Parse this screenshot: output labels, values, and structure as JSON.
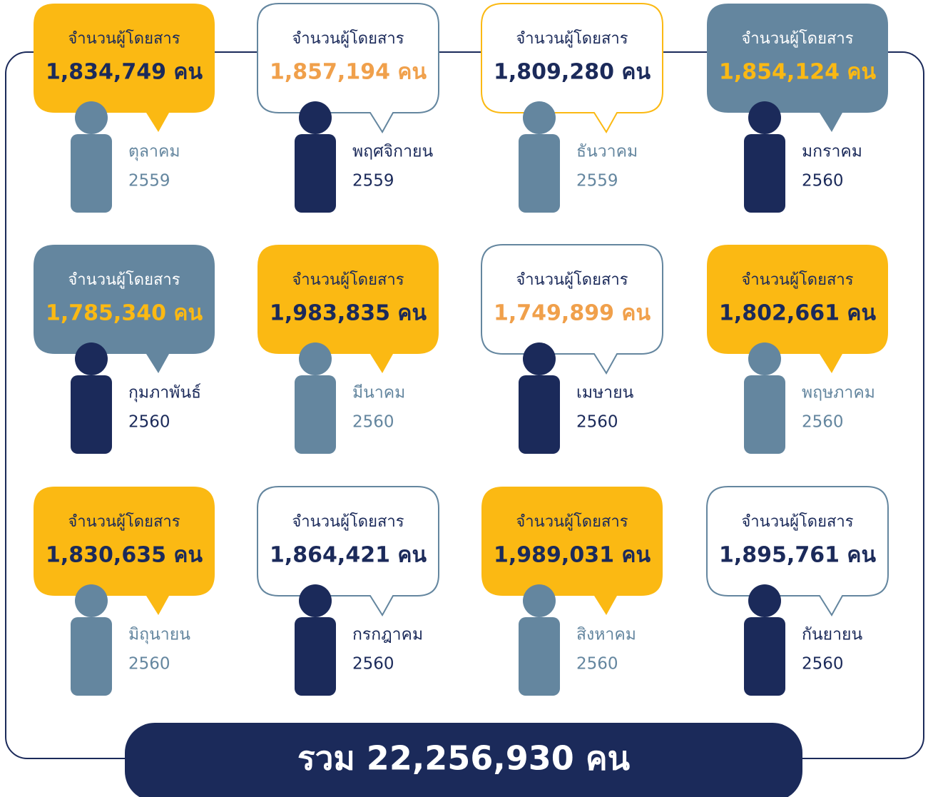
{
  "cards": [
    {
      "label": "จำนวนผู้โดยสาร",
      "value": "1,834,749 คน",
      "month": "ตุลาคม",
      "year": "2559",
      "fill": "#fbb913",
      "stroke": "none",
      "label_color": "#1b2a5a",
      "value_color": "#1b2a5a",
      "figure_color": "#64869f"
    },
    {
      "label": "จำนวนผู้โดยสาร",
      "value": "1,857,194 คน",
      "month": "พฤศจิกายน",
      "year": "2559",
      "fill": "#ffffff",
      "stroke": "#64869f",
      "label_color": "#1b2a5a",
      "value_color": "#f0a04b",
      "figure_color": "#1b2a5a"
    },
    {
      "label": "จำนวนผู้โดยสาร",
      "value": "1,809,280 คน",
      "month": "ธันวาคม",
      "year": "2559",
      "fill": "#ffffff",
      "stroke": "#fbb913",
      "label_color": "#1b2a5a",
      "value_color": "#1b2a5a",
      "figure_color": "#64869f"
    },
    {
      "label": "จำนวนผู้โดยสาร",
      "value": "1,854,124 คน",
      "month": "มกราคม",
      "year": "2560",
      "fill": "#64869f",
      "stroke": "none",
      "label_color": "#ffffff",
      "value_color": "#fbb913",
      "figure_color": "#1b2a5a"
    },
    {
      "label": "จำนวนผู้โดยสาร",
      "value": "1,785,340 คน",
      "month": "กุมภาพันธ์",
      "year": "2560",
      "fill": "#64869f",
      "stroke": "none",
      "label_color": "#ffffff",
      "value_color": "#fbb913",
      "figure_color": "#1b2a5a"
    },
    {
      "label": "จำนวนผู้โดยสาร",
      "value": "1,983,835 คน",
      "month": "มีนาคม",
      "year": "2560",
      "fill": "#fbb913",
      "stroke": "none",
      "label_color": "#1b2a5a",
      "value_color": "#1b2a5a",
      "figure_color": "#64869f"
    },
    {
      "label": "จำนวนผู้โดยสาร",
      "value": "1,749,899 คน",
      "month": "เมษายน",
      "year": "2560",
      "fill": "#ffffff",
      "stroke": "#64869f",
      "label_color": "#1b2a5a",
      "value_color": "#f0a04b",
      "figure_color": "#1b2a5a"
    },
    {
      "label": "จำนวนผู้โดยสาร",
      "value": "1,802,661 คน",
      "month": "พฤษภาคม",
      "year": "2560",
      "fill": "#fbb913",
      "stroke": "none",
      "label_color": "#1b2a5a",
      "value_color": "#1b2a5a",
      "figure_color": "#64869f"
    },
    {
      "label": "จำนวนผู้โดยสาร",
      "value": "1,830,635 คน",
      "month": "มิถุนายน",
      "year": "2560",
      "fill": "#fbb913",
      "stroke": "none",
      "label_color": "#1b2a5a",
      "value_color": "#1b2a5a",
      "figure_color": "#64869f"
    },
    {
      "label": "จำนวนผู้โดยสาร",
      "value": "1,864,421 คน",
      "month": "กรกฎาคม",
      "year": "2560",
      "fill": "#ffffff",
      "stroke": "#64869f",
      "label_color": "#1b2a5a",
      "value_color": "#1b2a5a",
      "figure_color": "#1b2a5a"
    },
    {
      "label": "จำนวนผู้โดยสาร",
      "value": "1,989,031 คน",
      "month": "สิงหาคม",
      "year": "2560",
      "fill": "#fbb913",
      "stroke": "none",
      "label_color": "#1b2a5a",
      "value_color": "#1b2a5a",
      "figure_color": "#64869f"
    },
    {
      "label": "จำนวนผู้โดยสาร",
      "value": "1,895,761 คน",
      "month": "กันยายน",
      "year": "2560",
      "fill": "#ffffff",
      "stroke": "#64869f",
      "label_color": "#1b2a5a",
      "value_color": "#1b2a5a",
      "figure_color": "#1b2a5a"
    }
  ],
  "total": "รวม 22,256,930 คน"
}
